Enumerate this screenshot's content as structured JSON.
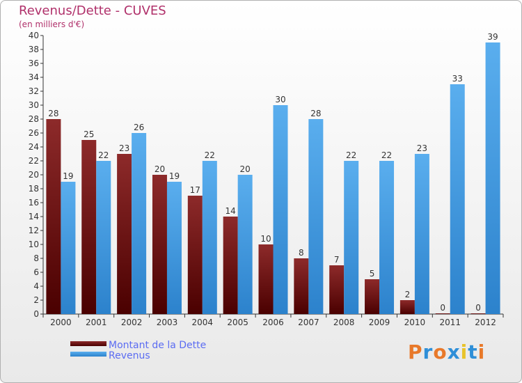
{
  "header": {
    "title": "Revenus/Dette - CUVES",
    "subtitle": "(en milliers d'€)"
  },
  "chart_data": {
    "type": "bar",
    "categories": [
      "2000",
      "2001",
      "2002",
      "2003",
      "2004",
      "2005",
      "2006",
      "2007",
      "2008",
      "2009",
      "2010",
      "2011",
      "2012"
    ],
    "series": [
      {
        "name": "Montant de la Dette",
        "values": [
          28,
          25,
          23,
          20,
          17,
          14,
          10,
          8,
          7,
          5,
          2,
          0,
          0
        ],
        "color": "#7a1a1a"
      },
      {
        "name": "Revenus",
        "values": [
          19,
          22,
          26,
          19,
          22,
          20,
          30,
          28,
          22,
          22,
          23,
          33,
          39
        ],
        "color": "#3f97e0"
      }
    ],
    "ylim": [
      0,
      40
    ],
    "yticks": [
      0,
      2,
      4,
      6,
      8,
      10,
      12,
      14,
      16,
      18,
      20,
      22,
      24,
      26,
      28,
      30,
      32,
      34,
      36,
      38,
      40
    ],
    "grid": false,
    "legend_position": "bottom-left"
  },
  "logo": {
    "text": "Proxiti",
    "colors": [
      "#e8792a",
      "#2f8fd8",
      "#e8792a",
      "#2f8fd8",
      "#e8c32a",
      "#2f8fd8",
      "#e8792a"
    ]
  }
}
